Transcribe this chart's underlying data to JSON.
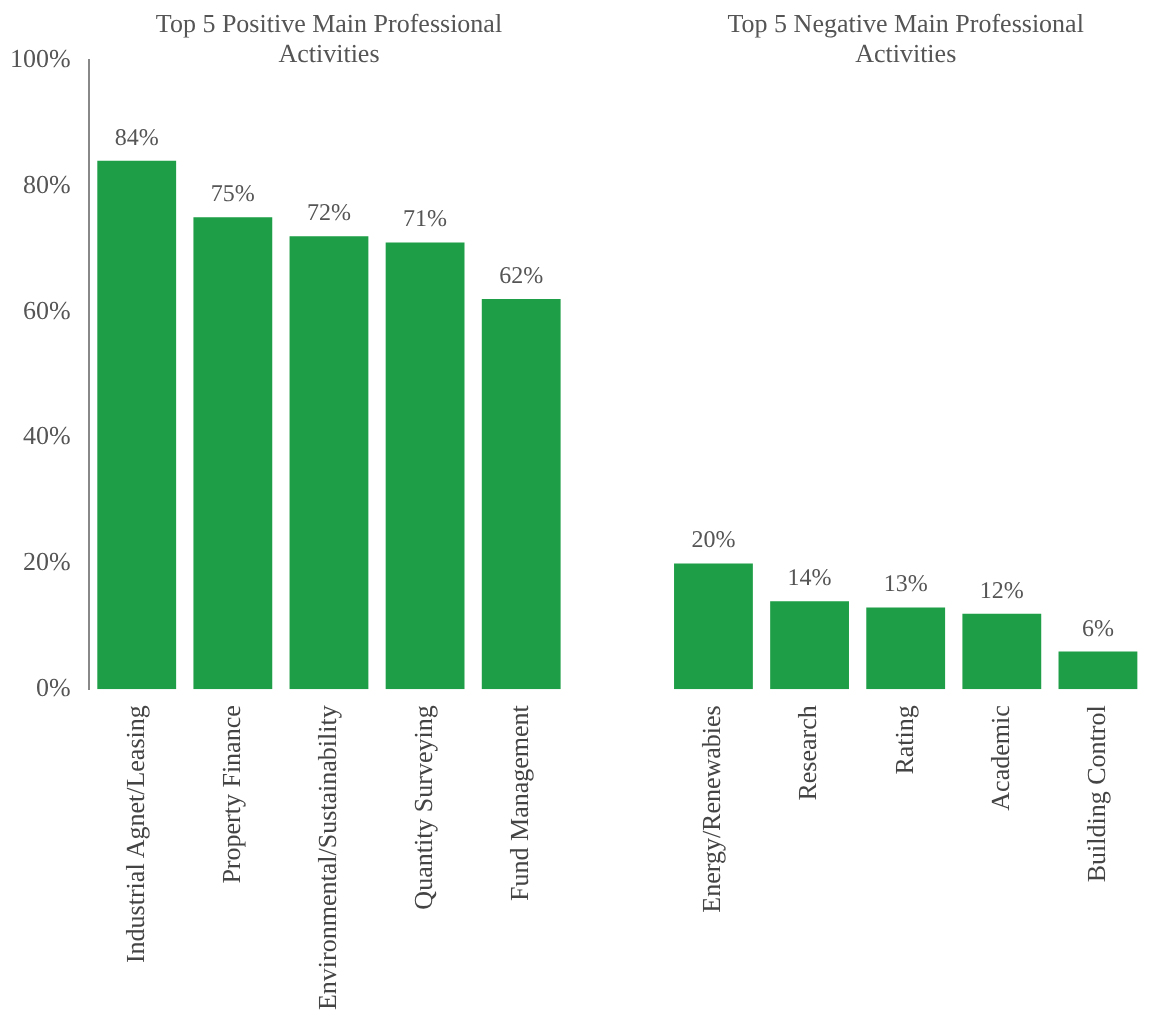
{
  "chart_data": {
    "type": "bar",
    "annotations": [
      "Top 5 Positive Main Professional Activities",
      "Top 5 Negative Main Professional Activities"
    ],
    "categories": [
      "Industrial Agnet/Leasing",
      "Property Finance",
      "Environmental/Sustainability",
      "Quantity Surveying",
      "Fund Management",
      null,
      "Energy/Renewabies",
      "Research",
      "Rating",
      "Academic",
      "Building Control"
    ],
    "values": [
      84,
      75,
      72,
      71,
      62,
      null,
      20,
      14,
      13,
      12,
      6
    ],
    "value_labels": [
      "84%",
      "75%",
      "72%",
      "71%",
      "62%",
      null,
      "20%",
      "14%",
      "13%",
      "12%",
      "6%"
    ],
    "color": "#1e9e46",
    "ylim": [
      0,
      100
    ],
    "yticks": [
      {
        "value": 0,
        "label": "0%"
      },
      {
        "value": 20,
        "label": "20%"
      },
      {
        "value": 40,
        "label": "40%"
      },
      {
        "value": 60,
        "label": "60%"
      },
      {
        "value": 80,
        "label": "80%"
      },
      {
        "value": 100,
        "label": "100%"
      }
    ],
    "grid": false,
    "legend": false
  }
}
